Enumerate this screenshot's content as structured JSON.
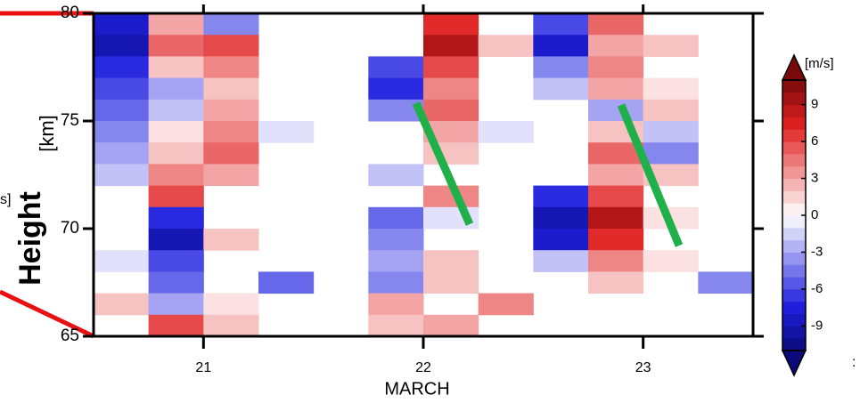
{
  "chart_data": {
    "type": "heatmap",
    "x_label": "MARCH",
    "y_label": "Height",
    "y_unit_label": "[km]",
    "fragments": [
      "s]",
      ":"
    ],
    "xlim": [
      20.5,
      23.5
    ],
    "xticks": [
      21,
      22,
      23
    ],
    "ylim": [
      65,
      80
    ],
    "yticks": [
      65,
      70,
      75,
      80
    ],
    "x": [
      20.625,
      20.875,
      21.125,
      21.375,
      21.625,
      21.875,
      22.125,
      22.375,
      22.625,
      22.875,
      23.125,
      23.375
    ],
    "y": [
      79.5,
      78.5,
      77.5,
      76.5,
      75.5,
      74.5,
      73.5,
      72.5,
      71.5,
      70.5,
      69.5,
      68.5,
      67.5,
      66.5,
      65.5
    ],
    "z": [
      [
        -8,
        3,
        -4,
        null,
        null,
        null,
        7,
        null,
        -6,
        5,
        null,
        null
      ],
      [
        -9,
        5,
        6,
        null,
        null,
        null,
        9,
        2,
        -8,
        3,
        2,
        null
      ],
      [
        -7,
        2,
        4,
        null,
        null,
        -6,
        6,
        null,
        -4,
        4,
        null,
        null
      ],
      [
        -6,
        -3,
        2,
        null,
        null,
        -7,
        4,
        null,
        -2,
        3,
        1,
        null
      ],
      [
        -5,
        -2,
        3,
        null,
        null,
        -4,
        5,
        null,
        null,
        -3,
        2,
        null
      ],
      [
        -4,
        1,
        4,
        -1,
        null,
        null,
        3,
        -1,
        null,
        2,
        -2,
        null
      ],
      [
        -3,
        2,
        5,
        null,
        null,
        null,
        2,
        null,
        null,
        5,
        -4,
        null
      ],
      [
        -2,
        4,
        3,
        null,
        null,
        -2,
        null,
        null,
        null,
        3,
        2,
        null
      ],
      [
        null,
        6,
        null,
        null,
        null,
        null,
        4,
        null,
        -7,
        6,
        null,
        null
      ],
      [
        null,
        -7,
        null,
        null,
        null,
        -5,
        -1,
        null,
        -9,
        9,
        1,
        null
      ],
      [
        null,
        -9,
        2,
        null,
        null,
        -4,
        null,
        null,
        -8,
        7,
        null,
        null
      ],
      [
        -1,
        -6,
        null,
        null,
        null,
        -3,
        2,
        null,
        -2,
        4,
        1,
        null
      ],
      [
        null,
        -5,
        null,
        -5,
        null,
        -4,
        2,
        null,
        null,
        2,
        null,
        -4
      ],
      [
        2,
        -3,
        1,
        null,
        null,
        3,
        null,
        4,
        null,
        null,
        null,
        null
      ],
      [
        null,
        6,
        2,
        null,
        null,
        2,
        3,
        null,
        null,
        null,
        null,
        null
      ]
    ],
    "colorbar": {
      "label": "[m/s]",
      "clim": [
        -11,
        11
      ],
      "ticks": [
        9,
        6,
        3,
        0,
        -3,
        -6,
        -9
      ],
      "levels": 22,
      "colors": [
        "#0a0a7a",
        "#2020e0",
        "#9090f0",
        "#ffffff",
        "#f09090",
        "#e02020",
        "#7a0a0a"
      ]
    }
  }
}
